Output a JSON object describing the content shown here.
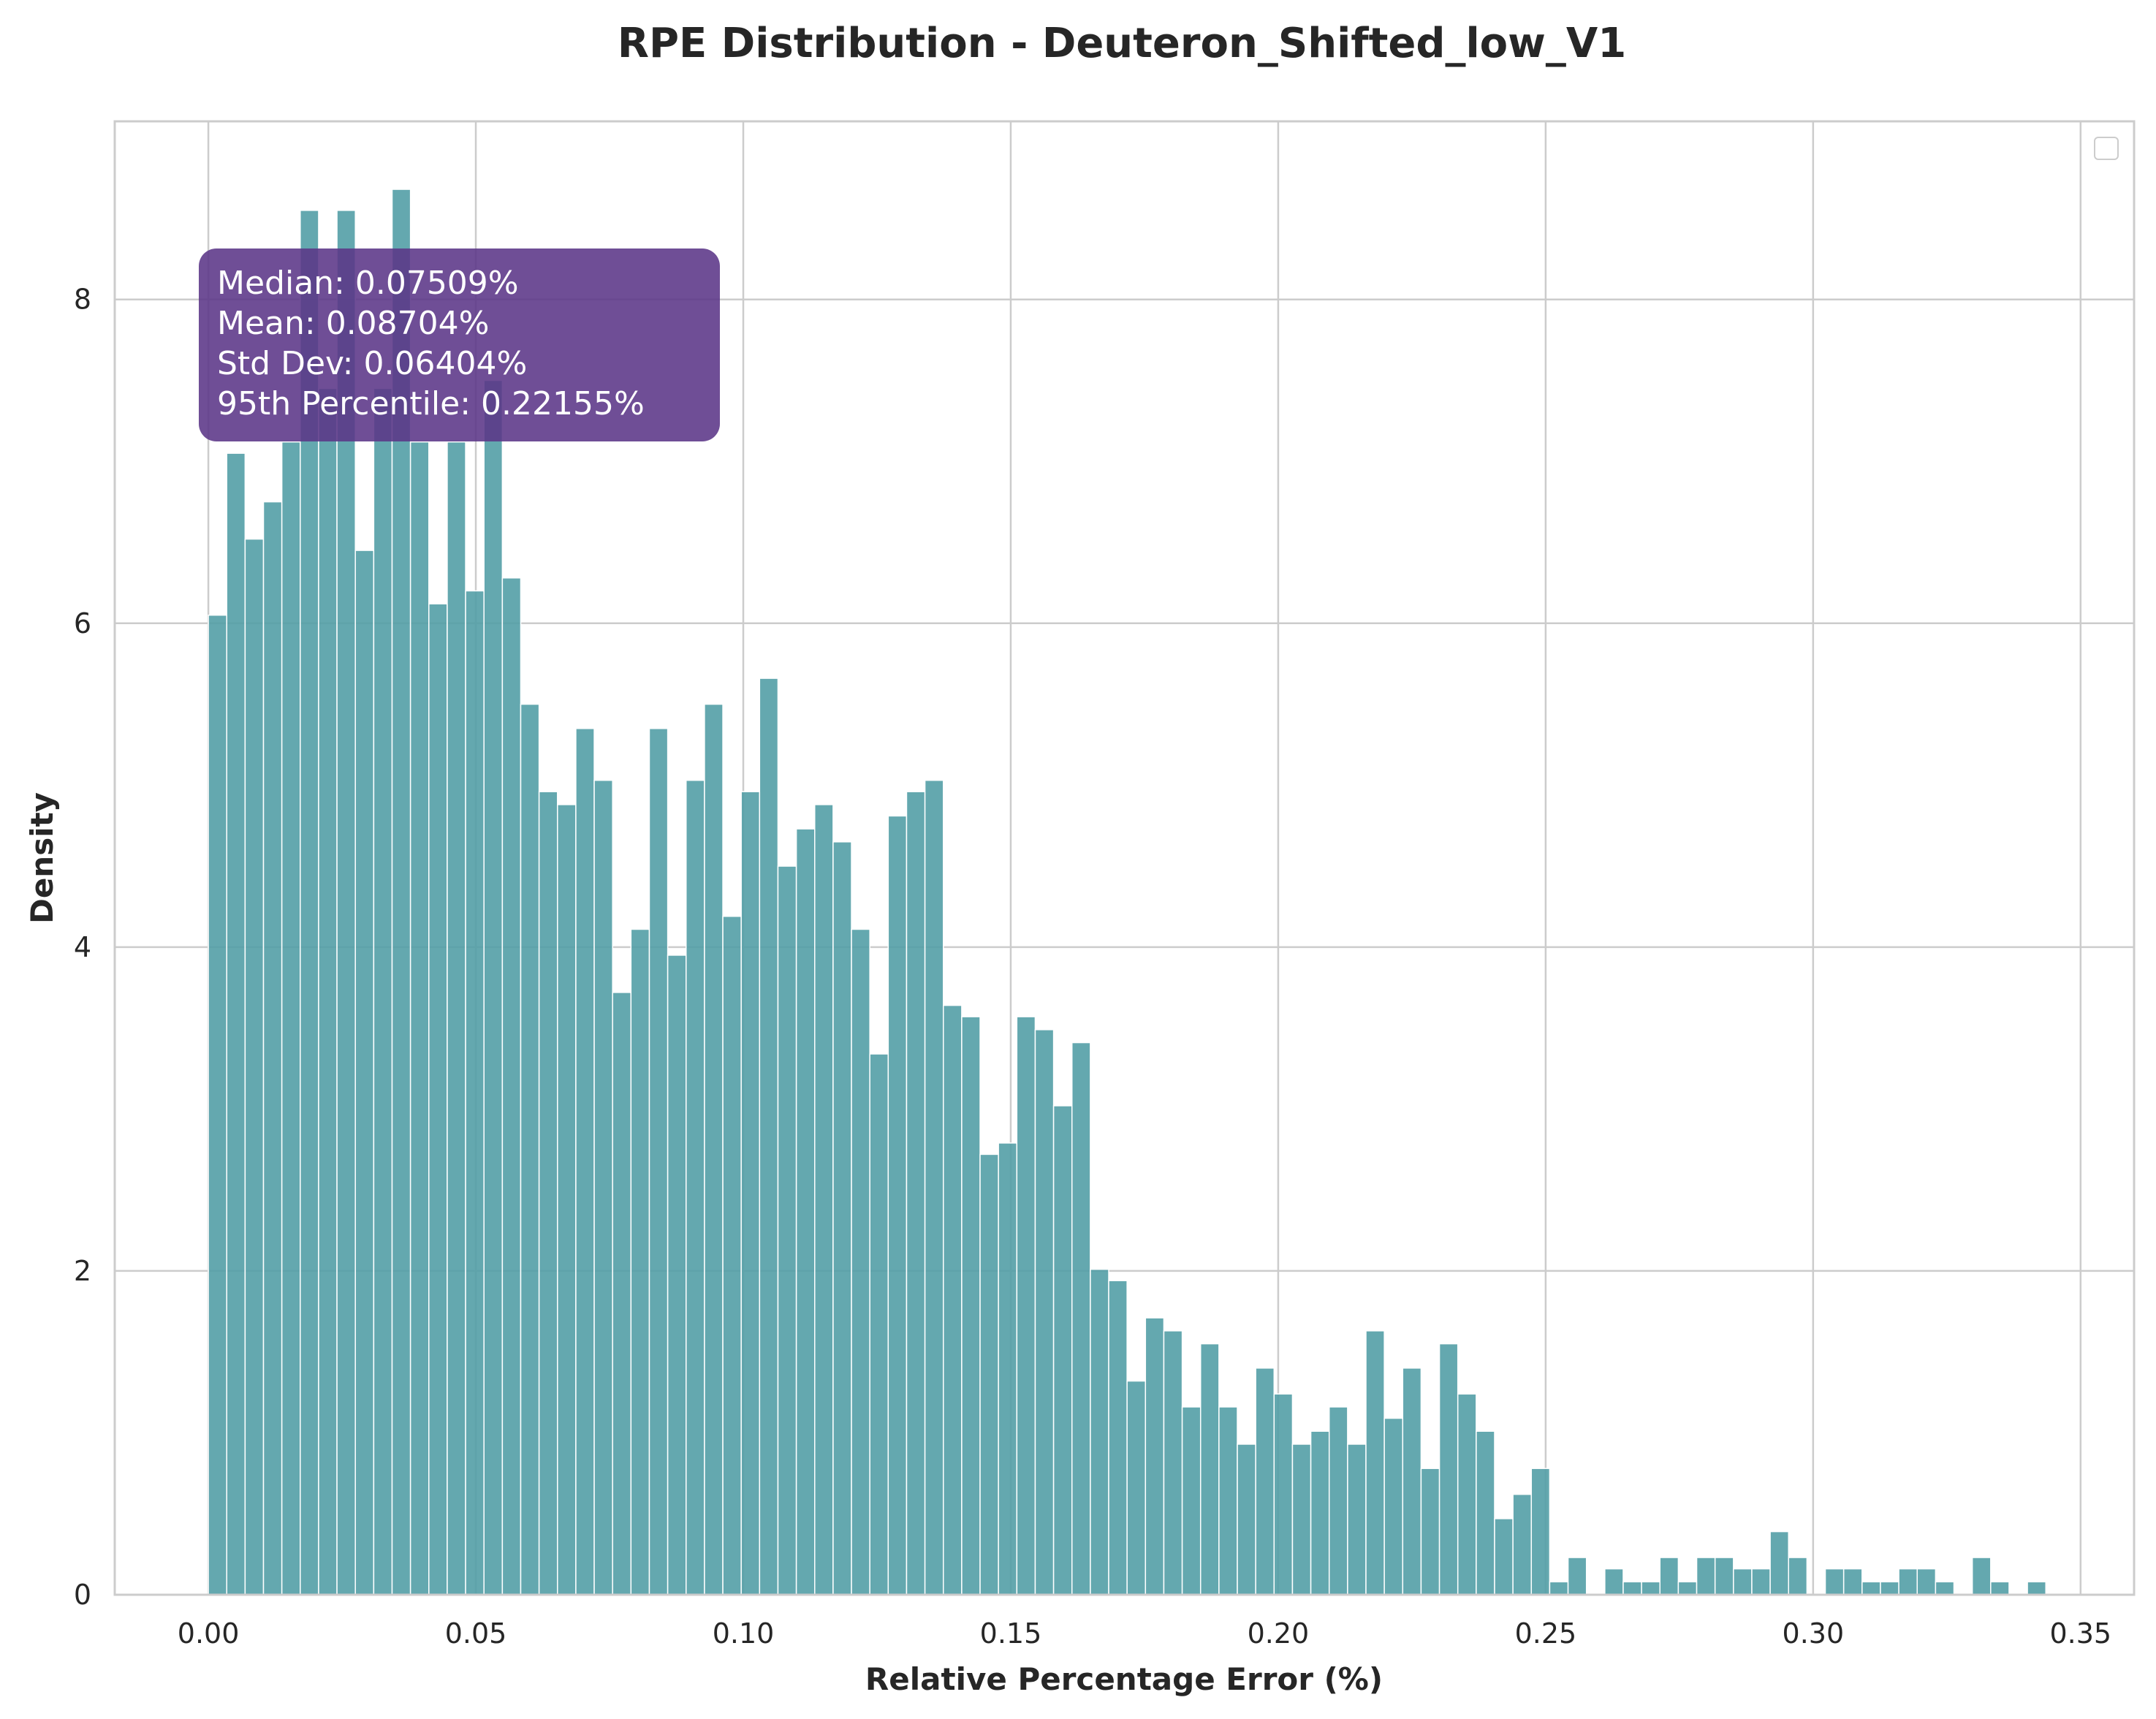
{
  "chart_data": {
    "type": "bar",
    "title": "RPE Distribution - Deuteron_Shifted_low_V1",
    "xlabel": "Relative Percentage Error (%)",
    "ylabel": "Density",
    "xlim": [
      -0.0175,
      0.36
    ],
    "ylim": [
      0,
      9.1
    ],
    "xticks": [
      0.0,
      0.05,
      0.1,
      0.15,
      0.2,
      0.25,
      0.3,
      0.35
    ],
    "xtick_labels": [
      "0.00",
      "0.05",
      "0.10",
      "0.15",
      "0.20",
      "0.25",
      "0.30",
      "0.35"
    ],
    "yticks": [
      0,
      2,
      4,
      6,
      8
    ],
    "ytick_labels": [
      "0",
      "2",
      "4",
      "6",
      "8"
    ],
    "grid": true,
    "legend": "top-right, empty",
    "bin_start": 0.0,
    "bin_width": 0.003435,
    "values": [
      6.05,
      7.05,
      6.52,
      6.75,
      7.12,
      8.55,
      7.45,
      8.55,
      6.45,
      7.45,
      8.68,
      7.12,
      6.12,
      7.12,
      6.2,
      7.5,
      6.28,
      5.5,
      4.96,
      4.88,
      5.35,
      5.03,
      3.72,
      4.11,
      5.35,
      3.95,
      5.03,
      5.5,
      4.19,
      4.96,
      5.66,
      4.5,
      4.73,
      4.88,
      4.65,
      4.11,
      3.34,
      4.81,
      4.96,
      5.03,
      3.64,
      3.57,
      2.72,
      2.79,
      3.57,
      3.49,
      3.02,
      3.41,
      2.01,
      1.94,
      1.32,
      1.71,
      1.63,
      1.16,
      1.55,
      1.16,
      0.93,
      1.4,
      1.24,
      0.93,
      1.01,
      1.16,
      0.93,
      1.63,
      1.09,
      1.4,
      0.78,
      1.55,
      1.24,
      1.01,
      0.47,
      0.62,
      0.78,
      0.08,
      0.23,
      0.0,
      0.16,
      0.08,
      0.08,
      0.23,
      0.08,
      0.23,
      0.23,
      0.16,
      0.16,
      0.39,
      0.23,
      0.0,
      0.16,
      0.16,
      0.08,
      0.08,
      0.16,
      0.16,
      0.08,
      0.0,
      0.23,
      0.08,
      0.0,
      0.08
    ],
    "bar_color": "#539ea6",
    "stats_box_color": "#5b3688"
  },
  "stats_box": {
    "lines": [
      "Median: 0.07509%",
      "Mean: 0.08704%",
      "Std Dev: 0.06404%",
      "95th Percentile: 0.22155%"
    ]
  }
}
